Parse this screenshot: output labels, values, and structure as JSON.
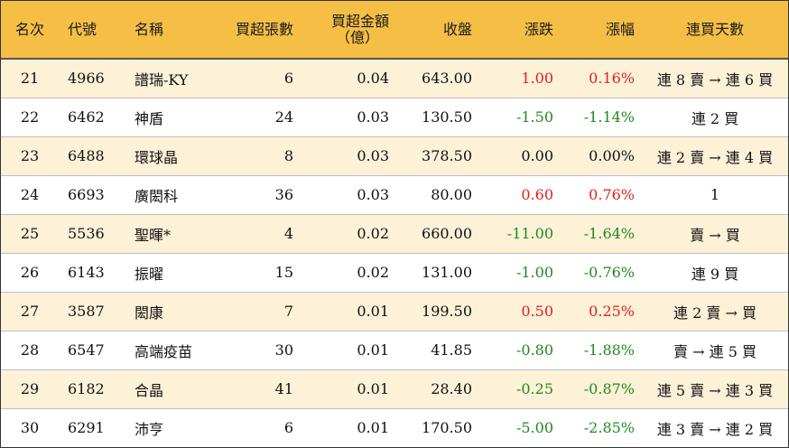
{
  "colors": {
    "header_bg": "#f5bf46",
    "stripe_bg": "#fdf1d8",
    "up": "#e01e1e",
    "down": "#1e8a1e"
  },
  "headers": {
    "rank": "名次",
    "code": "代號",
    "name": "名稱",
    "net_buy_lots": "買超張數",
    "net_buy_amount_l1": "買超金額",
    "net_buy_amount_l2": "（億）",
    "close": "收盤",
    "change": "漲跌",
    "change_pct": "漲幅",
    "streak": "連買天數"
  },
  "rows": [
    {
      "rank": "21",
      "code": "4966",
      "name": "譜瑞-KY",
      "lots": "6",
      "amount": "0.04",
      "close": "643.00",
      "change": "1.00",
      "pct": "0.16%",
      "dir": "up",
      "streak": "連 8 賣 → 連 6 買"
    },
    {
      "rank": "22",
      "code": "6462",
      "name": "神盾",
      "lots": "24",
      "amount": "0.03",
      "close": "130.50",
      "change": "-1.50",
      "pct": "-1.14%",
      "dir": "down",
      "streak": "連 2 買"
    },
    {
      "rank": "23",
      "code": "6488",
      "name": "環球晶",
      "lots": "8",
      "amount": "0.03",
      "close": "378.50",
      "change": "0.00",
      "pct": "0.00%",
      "dir": "flat",
      "streak": "連 2 賣 → 連 4 買"
    },
    {
      "rank": "24",
      "code": "6693",
      "name": "廣閎科",
      "lots": "36",
      "amount": "0.03",
      "close": "80.00",
      "change": "0.60",
      "pct": "0.76%",
      "dir": "up",
      "streak": "1"
    },
    {
      "rank": "25",
      "code": "5536",
      "name": "聖暉*",
      "lots": "4",
      "amount": "0.02",
      "close": "660.00",
      "change": "-11.00",
      "pct": "-1.64%",
      "dir": "down",
      "streak": "賣 → 買"
    },
    {
      "rank": "26",
      "code": "6143",
      "name": "振曜",
      "lots": "15",
      "amount": "0.02",
      "close": "131.00",
      "change": "-1.00",
      "pct": "-0.76%",
      "dir": "down",
      "streak": "連 9 買"
    },
    {
      "rank": "27",
      "code": "3587",
      "name": "閎康",
      "lots": "7",
      "amount": "0.01",
      "close": "199.50",
      "change": "0.50",
      "pct": "0.25%",
      "dir": "up",
      "streak": "連 2 賣 → 買"
    },
    {
      "rank": "28",
      "code": "6547",
      "name": "高端疫苗",
      "lots": "30",
      "amount": "0.01",
      "close": "41.85",
      "change": "-0.80",
      "pct": "-1.88%",
      "dir": "down",
      "streak": "賣 → 連 5 買"
    },
    {
      "rank": "29",
      "code": "6182",
      "name": "合晶",
      "lots": "41",
      "amount": "0.01",
      "close": "28.40",
      "change": "-0.25",
      "pct": "-0.87%",
      "dir": "down",
      "streak": "連 5 賣 → 連 3 買"
    },
    {
      "rank": "30",
      "code": "6291",
      "name": "沛亨",
      "lots": "6",
      "amount": "0.01",
      "close": "170.50",
      "change": "-5.00",
      "pct": "-2.85%",
      "dir": "down",
      "streak": "連 3 賣 → 連 2 買"
    }
  ]
}
